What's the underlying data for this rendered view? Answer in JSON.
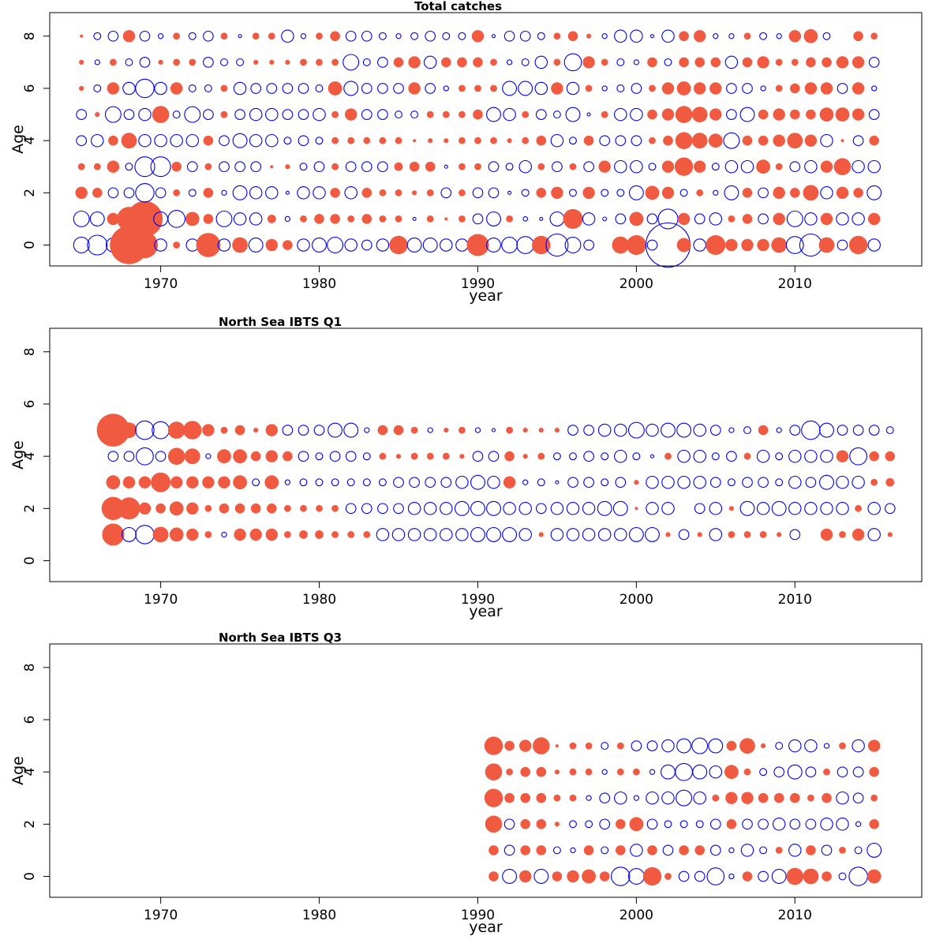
{
  "colors": {
    "positive": "#ef5a41",
    "negative": "#0000ee"
  },
  "chart_data": [
    {
      "type": "scatter",
      "title": "Total catches",
      "xlabel": "year",
      "ylabel": "Age",
      "xlim": [
        1963,
        2018
      ],
      "ylim": [
        -0.8,
        8.9
      ],
      "xticks": [
        1970,
        1980,
        1990,
        2000,
        2010
      ],
      "yticks": [
        0,
        2,
        4,
        6,
        8
      ],
      "encoding": "bubble area proportional to residual magnitude; filled red = positive, open blue = negative",
      "years": [
        1965,
        1966,
        1967,
        1968,
        1969,
        1970,
        1971,
        1972,
        1973,
        1974,
        1975,
        1976,
        1977,
        1978,
        1979,
        1980,
        1981,
        1982,
        1983,
        1984,
        1985,
        1986,
        1987,
        1988,
        1989,
        1990,
        1991,
        1992,
        1993,
        1994,
        1995,
        1996,
        1997,
        1998,
        1999,
        2000,
        2001,
        2002,
        2003,
        2004,
        2005,
        2006,
        2007,
        2008,
        2009,
        2010,
        2011,
        2012,
        2013,
        2014,
        2015
      ],
      "residuals": {
        "0": [
          -0.5,
          -0.8,
          -0.4,
          3.0,
          1.4,
          -0.3,
          0.1,
          -0.3,
          1.2,
          -0.3,
          0.5,
          -0.4,
          0.3,
          0.2,
          -0.3,
          -0.4,
          -0.5,
          -0.3,
          -0.2,
          -0.3,
          0.7,
          -0.4,
          -0.4,
          -0.3,
          -0.3,
          1.0,
          -0.4,
          -0.5,
          -0.6,
          0.7,
          -1.0,
          -0.5,
          -0.2,
          0.0,
          0.6,
          0.8,
          -0.2,
          -4.0,
          0.4,
          -0.3,
          0.8,
          0.3,
          0.3,
          0.3,
          0.5,
          -0.6,
          -1.0,
          0.5,
          -0.2,
          0.7,
          -0.3
        ],
        "1": [
          -0.5,
          -0.4,
          0.3,
          1.2,
          2.6,
          -0.4,
          -0.6,
          0.4,
          0.2,
          -0.5,
          -0.3,
          -0.3,
          0.15,
          -0.05,
          0.1,
          0.2,
          0.2,
          0.1,
          0.2,
          0.1,
          0.1,
          -0.02,
          0.1,
          0.02,
          0.1,
          -0.2,
          -0.4,
          0.1,
          -0.04,
          -0.02,
          -0.4,
          0.8,
          -0.3,
          -0.03,
          -0.2,
          0.4,
          -0.2,
          -0.8,
          0.3,
          -0.2,
          -0.3,
          0.1,
          0.2,
          -0.2,
          0.3,
          -0.5,
          -0.3,
          0.3,
          -0.3,
          -0.3,
          0.3
        ],
        "2": [
          0.3,
          0.2,
          -0.2,
          -0.2,
          -0.7,
          -0.2,
          0.1,
          -0.1,
          0.2,
          -0.05,
          -0.4,
          -0.3,
          -0.3,
          -0.02,
          -0.3,
          -0.3,
          0.2,
          -0.3,
          0.2,
          0.1,
          0.1,
          0.05,
          0.1,
          -0.2,
          0.1,
          -0.2,
          -0.2,
          -0.02,
          -0.1,
          0.2,
          0.3,
          -0.1,
          0.3,
          -0.1,
          -0.1,
          -0.4,
          0.4,
          0.3,
          -0.1,
          0.1,
          -0.05,
          -0.4,
          0.2,
          -0.2,
          0.3,
          0.2,
          0.5,
          -0.3,
          0.3,
          0.2,
          -0.4
        ],
        "3": [
          0.1,
          0.1,
          0.3,
          -0.1,
          -0.8,
          -0.8,
          0.2,
          -0.2,
          0.1,
          -0.2,
          -0.2,
          -0.2,
          0.02,
          0.05,
          -0.1,
          -0.2,
          0.1,
          -0.2,
          -0.2,
          -0.2,
          0.15,
          0.2,
          0.2,
          -0.02,
          0.1,
          0.1,
          -0.2,
          -0.1,
          -0.3,
          0.1,
          -0.2,
          0.1,
          -0.2,
          0.3,
          -0.3,
          -0.3,
          -0.1,
          0.3,
          0.7,
          0.3,
          -0.1,
          -0.3,
          -0.3,
          0.4,
          0.1,
          -0.2,
          -0.3,
          0.3,
          0.6,
          -0.3,
          -0.3
        ],
        "4": [
          -0.2,
          -0.3,
          0.2,
          0.5,
          -0.3,
          -0.3,
          -0.3,
          -0.3,
          0.2,
          -0.2,
          -0.4,
          -0.3,
          -0.3,
          -0.1,
          -0.2,
          -0.1,
          0.1,
          0.1,
          0.1,
          0.1,
          0.1,
          0.02,
          0.05,
          0.05,
          0.1,
          0.1,
          0.1,
          0.05,
          0.1,
          0.2,
          -0.3,
          -0.1,
          0.2,
          -0.2,
          -0.2,
          -0.2,
          0.1,
          0.2,
          0.6,
          0.5,
          0.4,
          -0.5,
          0.2,
          0.2,
          0.3,
          0.5,
          0.3,
          -0.3,
          0.02,
          -0.2,
          0.2
        ],
        "5": [
          -0.2,
          0.05,
          -0.5,
          -0.2,
          -0.3,
          0.6,
          -0.1,
          -0.5,
          -0.2,
          0.1,
          -0.2,
          -0.3,
          -0.3,
          -0.2,
          -0.2,
          -0.3,
          0.1,
          0.3,
          -0.2,
          -0.2,
          -0.1,
          -0.1,
          0.1,
          0.1,
          0.1,
          0.2,
          -0.4,
          -0.3,
          0.1,
          -0.2,
          -0.1,
          -0.4,
          -0.02,
          0.1,
          -0.3,
          -0.3,
          0.2,
          0.3,
          0.6,
          0.5,
          0.3,
          -0.2,
          -0.4,
          0.2,
          0.3,
          0.2,
          0.2,
          0.4,
          0.4,
          0.3,
          -0.2
        ],
        "6": [
          0.05,
          -0.1,
          0.3,
          -0.3,
          -0.7,
          -0.3,
          0.3,
          -0.1,
          -0.1,
          0.1,
          -0.3,
          -0.2,
          -0.2,
          -0.2,
          -0.2,
          -0.1,
          0.4,
          -0.4,
          -0.2,
          -0.2,
          -0.2,
          0.3,
          -0.2,
          -0.05,
          0.1,
          0.1,
          0.1,
          -0.4,
          -0.4,
          -0.3,
          0.3,
          -0.3,
          0.1,
          -0.05,
          -0.1,
          -0.2,
          0.1,
          0.3,
          0.4,
          0.3,
          0.3,
          -0.2,
          -0.2,
          -0.05,
          0.1,
          0.2,
          0.3,
          0.3,
          -0.2,
          0.3,
          -0.05
        ],
        "7": [
          0.05,
          -0.05,
          0.1,
          -0.1,
          -0.2,
          0.05,
          0.1,
          0.1,
          -0.2,
          -0.1,
          -0.1,
          0.05,
          0.05,
          0.05,
          0.1,
          0.1,
          0.1,
          -0.5,
          -0.1,
          -0.2,
          0.2,
          0.3,
          -0.3,
          0.2,
          0.2,
          0.2,
          0.1,
          -0.05,
          -0.1,
          -0.3,
          0.1,
          -0.6,
          0.3,
          0.1,
          -0.1,
          -0.05,
          0.2,
          -0.1,
          0.2,
          0.2,
          0.2,
          -0.3,
          0.2,
          0.3,
          0.1,
          0.1,
          0.2,
          0.2,
          0.3,
          0.3,
          -0.2
        ],
        "8": [
          0.02,
          -0.1,
          -0.2,
          0.3,
          -0.2,
          -0.05,
          0.1,
          -0.1,
          -0.2,
          0.1,
          -0.02,
          0.1,
          0.1,
          -0.3,
          -0.05,
          0.1,
          0.2,
          -0.2,
          -0.2,
          -0.1,
          -0.05,
          -0.1,
          -0.2,
          -0.1,
          -0.1,
          0.3,
          -0.02,
          -0.2,
          -0.2,
          -0.1,
          0.1,
          0.2,
          0.05,
          -0.05,
          -0.3,
          -0.3,
          -0.02,
          -0.3,
          0.2,
          0.3,
          -0.05,
          -0.05,
          0.1,
          -0.1,
          -0.05,
          0.3,
          0.4,
          -0.1,
          0.0,
          0.2,
          0.1
        ]
      }
    },
    {
      "type": "scatter",
      "title": "North Sea IBTS Q1",
      "xlabel": "year",
      "ylabel": "Age",
      "xlim": [
        1963,
        2018
      ],
      "ylim": [
        -0.8,
        8.9
      ],
      "xticks": [
        1970,
        1980,
        1990,
        2000,
        2010
      ],
      "yticks": [
        0,
        2,
        4,
        6,
        8
      ],
      "encoding": "bubble area proportional to residual magnitude; filled red = positive, open blue = negative",
      "years": [
        1967,
        1968,
        1969,
        1970,
        1971,
        1972,
        1973,
        1974,
        1975,
        1976,
        1977,
        1978,
        1979,
        1980,
        1981,
        1982,
        1983,
        1984,
        1985,
        1986,
        1987,
        1988,
        1989,
        1990,
        1991,
        1992,
        1993,
        1994,
        1995,
        1996,
        1997,
        1998,
        1999,
        2000,
        2001,
        2002,
        2003,
        2004,
        2005,
        2006,
        2007,
        2008,
        2009,
        2010,
        2011,
        2012,
        2013,
        2014,
        2015,
        2016
      ],
      "residuals": {
        "1": [
          1.0,
          -0.4,
          -0.7,
          0.5,
          0.4,
          0.3,
          0.1,
          -0.05,
          0.3,
          0.3,
          0.3,
          0.1,
          0.15,
          0.15,
          0.1,
          0.1,
          0.1,
          -0.3,
          -0.3,
          -0.3,
          -0.3,
          -0.3,
          -0.3,
          -0.4,
          -0.4,
          -0.4,
          -0.3,
          0.05,
          -0.3,
          -0.3,
          -0.3,
          -0.3,
          -0.3,
          -0.4,
          -0.4,
          0.05,
          -0.2,
          0.05,
          -0.3,
          0.1,
          0.1,
          0.1,
          0.05,
          -0.2,
          0.0,
          0.3,
          0.1,
          0.3,
          -0.3,
          0.05
        ],
        "2": [
          1.1,
          1.0,
          0.3,
          0.2,
          0.4,
          0.3,
          0.1,
          0.2,
          0.2,
          0.2,
          0.2,
          0.1,
          0.1,
          0.1,
          0.1,
          -0.2,
          -0.2,
          -0.2,
          -0.2,
          -0.3,
          -0.3,
          -0.3,
          -0.4,
          -0.4,
          -0.4,
          -0.3,
          -0.3,
          -0.2,
          -0.3,
          -0.3,
          -0.3,
          -0.4,
          -0.4,
          0.02,
          -0.3,
          -0.3,
          0.0,
          -0.2,
          -0.3,
          0.05,
          -0.4,
          -0.3,
          -0.4,
          -0.3,
          -0.3,
          -0.3,
          -0.3,
          0.1,
          -0.3,
          -0.2
        ],
        "3": [
          0.4,
          0.3,
          0.3,
          0.8,
          0.3,
          0.3,
          0.3,
          0.3,
          0.4,
          -0.1,
          0.4,
          -0.05,
          -0.1,
          -0.1,
          -0.1,
          -0.1,
          -0.1,
          -0.1,
          -0.2,
          -0.2,
          -0.2,
          -0.2,
          -0.3,
          -0.4,
          -0.3,
          0.3,
          -0.05,
          -0.1,
          -0.02,
          -0.2,
          -0.2,
          -0.1,
          -0.2,
          0.05,
          -0.3,
          -0.3,
          -0.3,
          -0.3,
          -0.2,
          -0.1,
          -0.2,
          -0.2,
          -0.1,
          -0.3,
          -0.2,
          -0.4,
          -0.3,
          -0.3,
          0.1,
          0.15
        ],
        "4": [
          -0.2,
          -0.2,
          -0.6,
          -0.2,
          0.6,
          0.5,
          -0.05,
          0.4,
          0.4,
          0.2,
          0.3,
          0.2,
          -0.2,
          -0.1,
          -0.2,
          -0.2,
          -0.1,
          0.1,
          0.05,
          0.1,
          0.1,
          0.1,
          0.05,
          -0.2,
          -0.2,
          0.2,
          0.05,
          0.1,
          -0.1,
          -0.1,
          -0.2,
          -0.1,
          -0.3,
          -0.1,
          -0.02,
          0.1,
          -0.3,
          -0.3,
          -0.1,
          -0.2,
          0.1,
          -0.3,
          -0.1,
          -0.3,
          -0.3,
          -0.3,
          0.3,
          -0.6,
          0.2,
          0.2
        ],
        "5": [
          2.2,
          0.5,
          -0.7,
          -0.6,
          0.6,
          0.7,
          0.3,
          0.1,
          0.2,
          0.05,
          0.3,
          -0.2,
          -0.2,
          -0.2,
          -0.4,
          -0.4,
          -0.05,
          0.2,
          0.2,
          0.1,
          -0.05,
          0.05,
          0.1,
          -0.05,
          -0.02,
          0.1,
          0.05,
          0.05,
          0.05,
          -0.2,
          -0.2,
          -0.3,
          -0.3,
          -0.5,
          -0.3,
          -0.4,
          -0.4,
          -0.3,
          -0.2,
          -0.05,
          -0.1,
          0.2,
          -0.05,
          -0.2,
          -0.7,
          -0.4,
          -0.2,
          -0.2,
          -0.2,
          -0.1
        ]
      }
    },
    {
      "type": "scatter",
      "title": "North Sea IBTS Q3",
      "xlabel": "year",
      "ylabel": "Age",
      "xlim": [
        1963,
        2018
      ],
      "ylim": [
        -0.8,
        8.9
      ],
      "xticks": [
        1970,
        1980,
        1990,
        2000,
        2010
      ],
      "yticks": [
        0,
        2,
        4,
        6,
        8
      ],
      "encoding": "bubble area proportional to residual magnitude; filled red = positive, open blue = negative",
      "years": [
        1991,
        1992,
        1993,
        1994,
        1995,
        1996,
        1997,
        1998,
        1999,
        2000,
        2001,
        2002,
        2003,
        2004,
        2005,
        2006,
        2007,
        2008,
        2009,
        2010,
        2011,
        2012,
        2013,
        2014,
        2015
      ],
      "residuals": {
        "0": [
          0.2,
          -0.4,
          0.3,
          -0.4,
          0.2,
          0.3,
          0.4,
          0.2,
          -0.7,
          -0.5,
          0.7,
          0.1,
          -0.2,
          -0.2,
          -0.6,
          -0.05,
          0.2,
          -0.2,
          -0.4,
          0.6,
          0.5,
          0.2,
          -0.1,
          -0.7,
          0.4
        ],
        "1": [
          0.2,
          -0.2,
          0.2,
          0.2,
          -0.1,
          -0.05,
          0.2,
          -0.1,
          0.2,
          -0.3,
          0.2,
          -0.2,
          0.2,
          0.2,
          -0.2,
          -0.05,
          -0.3,
          -0.1,
          0.1,
          -0.3,
          0.2,
          -0.2,
          0.1,
          -0.1,
          -0.4
        ],
        "2": [
          0.6,
          -0.2,
          0.2,
          0.2,
          0.05,
          -0.1,
          -0.1,
          -0.2,
          0.2,
          0.4,
          -0.2,
          -0.1,
          -0.1,
          -0.1,
          -0.2,
          0.2,
          -0.2,
          -0.2,
          -0.3,
          -0.2,
          -0.2,
          -0.3,
          -0.3,
          -0.05,
          0.2
        ],
        "3": [
          0.7,
          0.2,
          0.2,
          0.2,
          0.1,
          0.1,
          -0.05,
          -0.2,
          -0.3,
          -0.05,
          -0.3,
          -0.3,
          -0.5,
          -0.3,
          0.1,
          0.3,
          0.3,
          0.2,
          0.2,
          0.2,
          0.1,
          0.2,
          -0.3,
          -0.2,
          0.1
        ],
        "4": [
          0.6,
          0.1,
          0.2,
          0.2,
          0.05,
          0.1,
          0.1,
          -0.05,
          0.1,
          0.1,
          -0.05,
          -0.4,
          -0.6,
          -0.4,
          -0.3,
          0.4,
          0.1,
          -0.1,
          -0.2,
          -0.4,
          -0.2,
          0.1,
          -0.2,
          -0.2,
          0.2
        ],
        "5": [
          0.7,
          0.2,
          0.3,
          0.6,
          0.02,
          0.1,
          0.1,
          -0.1,
          0.1,
          -0.2,
          -0.2,
          -0.3,
          -0.4,
          -0.5,
          -0.4,
          0.2,
          0.5,
          0.05,
          -0.1,
          -0.3,
          -0.3,
          -0.05,
          0.1,
          -0.3,
          0.3
        ]
      }
    }
  ]
}
